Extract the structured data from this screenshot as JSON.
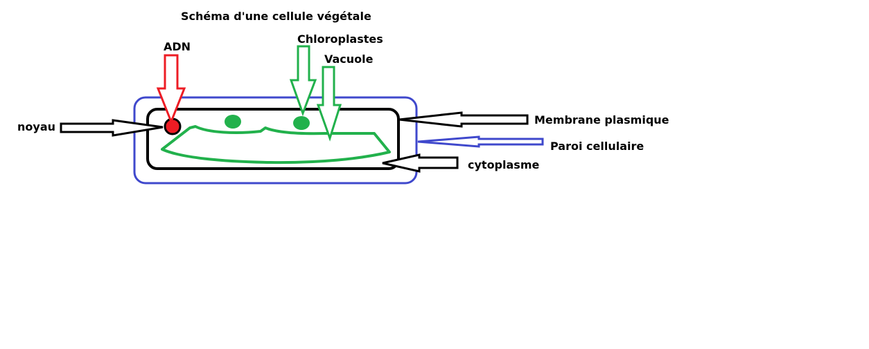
{
  "title": "Schéma d'une cellule végétale",
  "labels": {
    "adn": "ADN",
    "chloroplastes": "Chloroplastes",
    "vacuole": "Vacuole",
    "noyau": "noyau",
    "membrane": "Membrane plasmique",
    "paroi": "Paroi cellulaire",
    "cytoplasme": "cytoplasme"
  },
  "colors": {
    "paroi": "#3f48cc",
    "membrane": "#000000",
    "chloroplast": "#22b14c",
    "vacuole": "#22b14c",
    "adn": "#ed1c24",
    "text": "#000000"
  }
}
